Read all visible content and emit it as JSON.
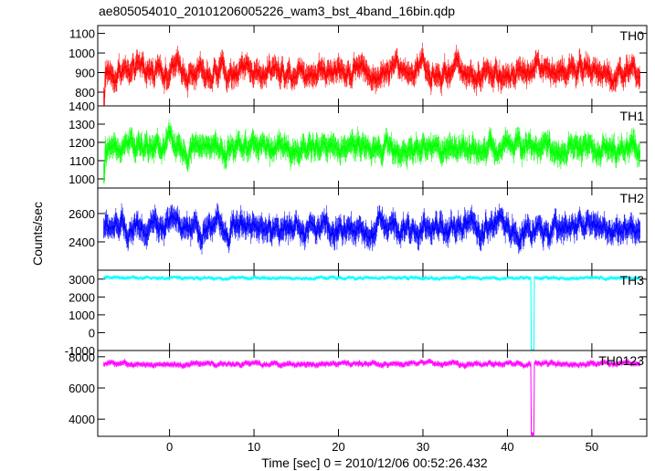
{
  "chart_data": [
    {
      "type": "line",
      "panel": "TH0",
      "label": "TH0",
      "color": "#ff0000",
      "title": "ae805054010_20101206005226_wam3_bst_4band_16bin.qdp",
      "ylim": [
        730,
        1140
      ],
      "yticks": [
        800,
        900,
        1000,
        1100
      ],
      "mean": 910,
      "noise": 55,
      "error": 45,
      "dip_height": null
    },
    {
      "type": "line",
      "panel": "TH1",
      "label": "TH1",
      "color": "#00ff00",
      "ylim": [
        950,
        1400
      ],
      "yticks": [
        1000,
        1100,
        1200,
        1300,
        1400
      ],
      "mean": 1170,
      "noise": 55,
      "error": 50,
      "dip_height": null
    },
    {
      "type": "line",
      "panel": "TH2",
      "label": "TH2",
      "color": "#0000ff",
      "ylim": [
        2200,
        2780
      ],
      "yticks": [
        2400,
        2600
      ],
      "mean": 2500,
      "noise": 75,
      "error": 65,
      "dip_height": null
    },
    {
      "type": "line",
      "panel": "TH3",
      "label": "TH3",
      "color": "#00ffff",
      "ylim": [
        -1000,
        3500
      ],
      "yticks": [
        -1000,
        0,
        1000,
        2000,
        3000
      ],
      "mean": 3050,
      "noise": 70,
      "error": 80,
      "dip_x": 43.0,
      "dip_height": -1000
    },
    {
      "type": "line",
      "panel": "TH0123",
      "label": "TH0123",
      "color": "#ff00ff",
      "ylim": [
        2900,
        8400
      ],
      "yticks": [
        4000,
        6000,
        8000
      ],
      "mean": 7550,
      "noise": 120,
      "error": 140,
      "dip_x": 43.0,
      "dip_height": 3050
    }
  ],
  "x_axis": {
    "label": "Time [sec] 0 = 2010/12/06 00:52:26.432",
    "xlim": [
      -8.5,
      56.5
    ],
    "ticks": [
      0,
      10,
      20,
      30,
      40,
      50
    ],
    "data_start": -7.8,
    "data_end": 55.8,
    "bin": 0.0625
  },
  "y_axis": {
    "label": "Counts/sec"
  }
}
